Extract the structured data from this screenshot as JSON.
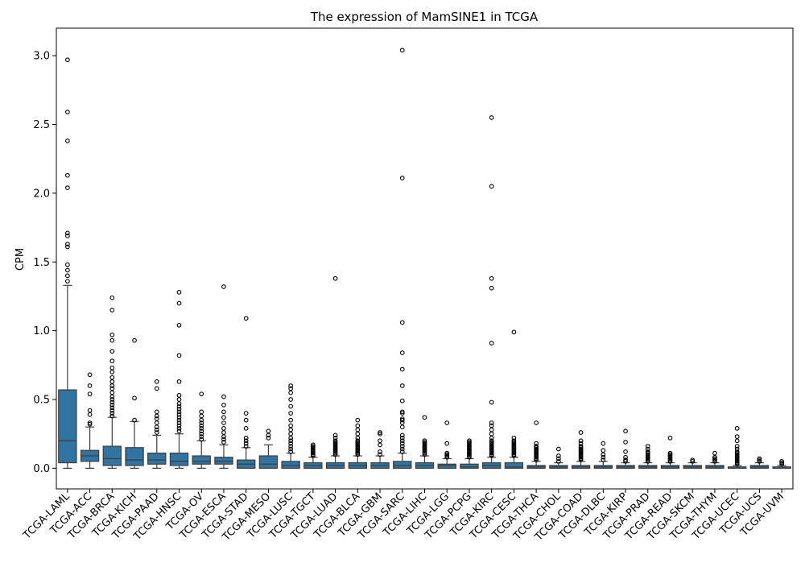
{
  "chart_data": {
    "type": "box",
    "title": "The expression of MamSINE1 in TCGA",
    "xlabel": "",
    "ylabel": "CPM",
    "ylim": [
      -0.15,
      3.2
    ],
    "yticks": [
      0.0,
      0.5,
      1.0,
      1.5,
      2.0,
      2.5,
      3.0
    ],
    "ytick_labels": [
      "0.0",
      "0.5",
      "1.0",
      "1.5",
      "2.0",
      "2.5",
      "3.0"
    ],
    "grid": false,
    "box_color": "#3274a1",
    "categories": [
      "TCGA-LAML",
      "TCGA-ACC",
      "TCGA-BRCA",
      "TCGA-KICH",
      "TCGA-PAAD",
      "TCGA-HNSC",
      "TCGA-OV",
      "TCGA-ESCA",
      "TCGA-STAD",
      "TCGA-MESO",
      "TCGA-LUSC",
      "TCGA-TGCT",
      "TCGA-LUAD",
      "TCGA-BLCA",
      "TCGA-GBM",
      "TCGA-SARC",
      "TCGA-LIHC",
      "TCGA-LGG",
      "TCGA-PCPG",
      "TCGA-KIRC",
      "TCGA-CESC",
      "TCGA-THCA",
      "TCGA-CHOL",
      "TCGA-COAD",
      "TCGA-DLBC",
      "TCGA-KIRP",
      "TCGA-PRAD",
      "TCGA-READ",
      "TCGA-SKCM",
      "TCGA-THYM",
      "TCGA-UCEC",
      "TCGA-UCS",
      "TCGA-UVM"
    ],
    "boxes": [
      {
        "whislo": 0.0,
        "q1": 0.04,
        "med": 0.2,
        "q3": 0.57,
        "whishi": 1.33,
        "fliers": [
          1.36,
          1.4,
          1.44,
          1.48,
          1.61,
          1.63,
          1.69,
          1.71,
          2.04,
          2.13,
          2.38,
          2.59,
          2.97
        ]
      },
      {
        "whislo": 0.0,
        "q1": 0.05,
        "med": 0.09,
        "q3": 0.13,
        "whishi": 0.3,
        "fliers": [
          0.32,
          0.33,
          0.39,
          0.42,
          0.54,
          0.6,
          0.68
        ]
      },
      {
        "whislo": 0.0,
        "q1": 0.02,
        "med": 0.07,
        "q3": 0.16,
        "whishi": 0.37,
        "fliers": [
          0.38,
          0.4,
          0.42,
          0.44,
          0.46,
          0.48,
          0.5,
          0.52,
          0.55,
          0.58,
          0.6,
          0.63,
          0.66,
          0.7,
          0.73,
          0.78,
          0.85,
          0.93,
          0.97,
          1.15,
          1.24
        ]
      },
      {
        "whislo": 0.0,
        "q1": 0.02,
        "med": 0.06,
        "q3": 0.15,
        "whishi": 0.34,
        "fliers": [
          0.35,
          0.51,
          0.93
        ]
      },
      {
        "whislo": 0.0,
        "q1": 0.03,
        "med": 0.06,
        "q3": 0.11,
        "whishi": 0.24,
        "fliers": [
          0.26,
          0.28,
          0.3,
          0.33,
          0.36,
          0.38,
          0.41,
          0.58,
          0.63
        ]
      },
      {
        "whislo": 0.0,
        "q1": 0.02,
        "med": 0.05,
        "q3": 0.11,
        "whishi": 0.25,
        "fliers": [
          0.27,
          0.29,
          0.31,
          0.33,
          0.35,
          0.37,
          0.39,
          0.41,
          0.43,
          0.45,
          0.47,
          0.5,
          0.53,
          0.63,
          0.82,
          1.04,
          1.2,
          1.28
        ]
      },
      {
        "whislo": 0.0,
        "q1": 0.03,
        "med": 0.05,
        "q3": 0.09,
        "whishi": 0.2,
        "fliers": [
          0.21,
          0.23,
          0.25,
          0.27,
          0.29,
          0.31,
          0.33,
          0.35,
          0.38,
          0.41,
          0.54
        ]
      },
      {
        "whislo": 0.0,
        "q1": 0.03,
        "med": 0.05,
        "q3": 0.08,
        "whishi": 0.17,
        "fliers": [
          0.19,
          0.21,
          0.23,
          0.26,
          0.29,
          0.33,
          0.37,
          0.41,
          0.46,
          0.52,
          1.32
        ]
      },
      {
        "whislo": 0.0,
        "q1": 0.0,
        "med": 0.03,
        "q3": 0.06,
        "whishi": 0.15,
        "fliers": [
          0.16,
          0.18,
          0.2,
          0.22,
          0.29,
          0.35,
          0.4,
          1.09
        ]
      },
      {
        "whislo": 0.0,
        "q1": 0.0,
        "med": 0.03,
        "q3": 0.09,
        "whishi": 0.17,
        "fliers": [
          0.22,
          0.24,
          0.27
        ]
      },
      {
        "whislo": 0.0,
        "q1": 0.0,
        "med": 0.02,
        "q3": 0.05,
        "whishi": 0.11,
        "fliers": [
          0.12,
          0.14,
          0.16,
          0.18,
          0.2,
          0.22,
          0.25,
          0.28,
          0.31,
          0.35,
          0.4,
          0.45,
          0.5,
          0.55,
          0.58,
          0.6
        ]
      },
      {
        "whislo": 0.0,
        "q1": 0.0,
        "med": 0.02,
        "q3": 0.04,
        "whishi": 0.08,
        "fliers": [
          0.09,
          0.1,
          0.11,
          0.12,
          0.13,
          0.14,
          0.15,
          0.16,
          0.17
        ]
      },
      {
        "whislo": 0.0,
        "q1": 0.0,
        "med": 0.02,
        "q3": 0.04,
        "whishi": 0.09,
        "fliers": [
          0.1,
          0.11,
          0.12,
          0.13,
          0.14,
          0.15,
          0.16,
          0.17,
          0.18,
          0.19,
          0.2,
          0.22,
          0.24,
          1.38
        ]
      },
      {
        "whislo": 0.0,
        "q1": 0.0,
        "med": 0.02,
        "q3": 0.04,
        "whishi": 0.09,
        "fliers": [
          0.1,
          0.11,
          0.12,
          0.13,
          0.14,
          0.15,
          0.16,
          0.17,
          0.18,
          0.19,
          0.2,
          0.22,
          0.25,
          0.28,
          0.31,
          0.35
        ]
      },
      {
        "whislo": 0.0,
        "q1": 0.0,
        "med": 0.02,
        "q3": 0.04,
        "whishi": 0.09,
        "fliers": [
          0.1,
          0.12,
          0.17,
          0.2,
          0.25,
          0.26
        ]
      },
      {
        "whislo": 0.0,
        "q1": 0.0,
        "med": 0.02,
        "q3": 0.05,
        "whishi": 0.11,
        "fliers": [
          0.12,
          0.14,
          0.16,
          0.18,
          0.2,
          0.22,
          0.24,
          0.3,
          0.33,
          0.35,
          0.36,
          0.4,
          0.41,
          0.49,
          0.6,
          0.72,
          0.84,
          1.06,
          2.11,
          3.04
        ]
      },
      {
        "whislo": 0.0,
        "q1": 0.0,
        "med": 0.02,
        "q3": 0.04,
        "whishi": 0.09,
        "fliers": [
          0.1,
          0.11,
          0.12,
          0.13,
          0.14,
          0.15,
          0.16,
          0.17,
          0.18,
          0.19,
          0.2,
          0.37
        ]
      },
      {
        "whislo": 0.0,
        "q1": 0.0,
        "med": 0.02,
        "q3": 0.03,
        "whishi": 0.07,
        "fliers": [
          0.08,
          0.09,
          0.1,
          0.11,
          0.18,
          0.33
        ]
      },
      {
        "whislo": 0.0,
        "q1": 0.0,
        "med": 0.01,
        "q3": 0.03,
        "whishi": 0.07,
        "fliers": [
          0.08,
          0.09,
          0.1,
          0.11,
          0.12,
          0.13,
          0.14,
          0.15,
          0.16,
          0.17,
          0.18,
          0.19,
          0.2
        ]
      },
      {
        "whislo": 0.0,
        "q1": 0.0,
        "med": 0.02,
        "q3": 0.04,
        "whishi": 0.08,
        "fliers": [
          0.09,
          0.1,
          0.11,
          0.12,
          0.13,
          0.14,
          0.15,
          0.16,
          0.17,
          0.18,
          0.19,
          0.2,
          0.22,
          0.25,
          0.28,
          0.31,
          0.33,
          0.48,
          0.91,
          1.31,
          1.38,
          2.05,
          2.55
        ]
      },
      {
        "whislo": 0.0,
        "q1": 0.0,
        "med": 0.01,
        "q3": 0.04,
        "whishi": 0.08,
        "fliers": [
          0.09,
          0.1,
          0.11,
          0.12,
          0.13,
          0.14,
          0.15,
          0.16,
          0.17,
          0.18,
          0.19,
          0.2,
          0.22,
          0.99
        ]
      },
      {
        "whislo": 0.0,
        "q1": 0.0,
        "med": 0.01,
        "q3": 0.02,
        "whishi": 0.05,
        "fliers": [
          0.06,
          0.07,
          0.08,
          0.09,
          0.1,
          0.11,
          0.12,
          0.13,
          0.14,
          0.15,
          0.16,
          0.18,
          0.33
        ]
      },
      {
        "whislo": 0.0,
        "q1": 0.0,
        "med": 0.01,
        "q3": 0.02,
        "whishi": 0.04,
        "fliers": [
          0.05,
          0.07,
          0.09,
          0.14
        ]
      },
      {
        "whislo": 0.0,
        "q1": 0.0,
        "med": 0.01,
        "q3": 0.02,
        "whishi": 0.05,
        "fliers": [
          0.06,
          0.07,
          0.08,
          0.09,
          0.1,
          0.11,
          0.12,
          0.13,
          0.14,
          0.15,
          0.16,
          0.18,
          0.2,
          0.26
        ]
      },
      {
        "whislo": 0.0,
        "q1": 0.0,
        "med": 0.01,
        "q3": 0.02,
        "whishi": 0.05,
        "fliers": [
          0.06,
          0.08,
          0.1,
          0.13,
          0.18
        ]
      },
      {
        "whislo": 0.0,
        "q1": 0.0,
        "med": 0.01,
        "q3": 0.02,
        "whishi": 0.04,
        "fliers": [
          0.05,
          0.06,
          0.08,
          0.12,
          0.19,
          0.27
        ]
      },
      {
        "whislo": 0.0,
        "q1": 0.0,
        "med": 0.01,
        "q3": 0.02,
        "whishi": 0.04,
        "fliers": [
          0.05,
          0.06,
          0.07,
          0.08,
          0.09,
          0.1,
          0.11,
          0.12,
          0.14,
          0.16
        ]
      },
      {
        "whislo": 0.0,
        "q1": 0.0,
        "med": 0.01,
        "q3": 0.02,
        "whishi": 0.04,
        "fliers": [
          0.05,
          0.06,
          0.07,
          0.08,
          0.09,
          0.1,
          0.11,
          0.22
        ]
      },
      {
        "whislo": 0.0,
        "q1": 0.0,
        "med": 0.01,
        "q3": 0.02,
        "whishi": 0.04,
        "fliers": [
          0.05,
          0.06
        ]
      },
      {
        "whislo": 0.0,
        "q1": 0.0,
        "med": 0.01,
        "q3": 0.02,
        "whishi": 0.04,
        "fliers": [
          0.05,
          0.06,
          0.07,
          0.08,
          0.11
        ]
      },
      {
        "whislo": 0.0,
        "q1": 0.0,
        "med": 0.0,
        "q3": 0.01,
        "whishi": 0.02,
        "fliers": [
          0.03,
          0.04,
          0.05,
          0.06,
          0.07,
          0.08,
          0.09,
          0.1,
          0.11,
          0.12,
          0.14,
          0.16,
          0.2,
          0.23,
          0.29
        ]
      },
      {
        "whislo": 0.0,
        "q1": 0.0,
        "med": 0.01,
        "q3": 0.02,
        "whishi": 0.04,
        "fliers": [
          0.05,
          0.06,
          0.07
        ]
      },
      {
        "whislo": 0.0,
        "q1": 0.0,
        "med": 0.0,
        "q3": 0.01,
        "whishi": 0.02,
        "fliers": [
          0.03,
          0.04,
          0.05
        ]
      }
    ]
  }
}
